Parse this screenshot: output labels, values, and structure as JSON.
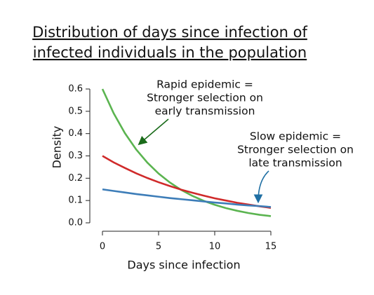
{
  "chart_data": {
    "type": "line",
    "title": [
      "Distribution of days since infection of",
      "infected individuals in the population"
    ],
    "x_label": "Days since infection",
    "y_label": "Density",
    "x": [
      0,
      1,
      2,
      3,
      4,
      5,
      6,
      7,
      8,
      9,
      10,
      11,
      12,
      13,
      14,
      15
    ],
    "series": [
      {
        "color": "#5bb450",
        "values": [
          0.6,
          0.491,
          0.402,
          0.329,
          0.27,
          0.221,
          0.181,
          0.148,
          0.121,
          0.099,
          0.081,
          0.066,
          0.054,
          0.044,
          0.036,
          0.03
        ]
      },
      {
        "color": "#d02a2a",
        "values": [
          0.3,
          0.271,
          0.246,
          0.222,
          0.201,
          0.182,
          0.165,
          0.149,
          0.135,
          0.122,
          0.11,
          0.1,
          0.09,
          0.082,
          0.074,
          0.067
        ]
      },
      {
        "color": "#3d7db8",
        "values": [
          0.15,
          0.143,
          0.136,
          0.129,
          0.123,
          0.117,
          0.111,
          0.106,
          0.101,
          0.096,
          0.091,
          0.087,
          0.082,
          0.078,
          0.075,
          0.071
        ]
      }
    ],
    "xlim": [
      0,
      15
    ],
    "xticks": [
      0,
      5,
      10,
      15
    ],
    "ylim": [
      0,
      0.6
    ],
    "yticks": [
      {
        "value": 0,
        "label": "0.0"
      },
      0.1,
      0.2,
      0.3,
      0.4,
      0.5,
      0.6
    ],
    "annotations": [
      {
        "color": "#2e8b2e",
        "lines": [
          "Rapid epidemic =",
          "Stronger selection on",
          "early transmission"
        ]
      },
      {
        "color": "#3d85b8",
        "lines": [
          "Slow epidemic =",
          "Stronger selection on",
          "late transmission"
        ]
      }
    ]
  }
}
